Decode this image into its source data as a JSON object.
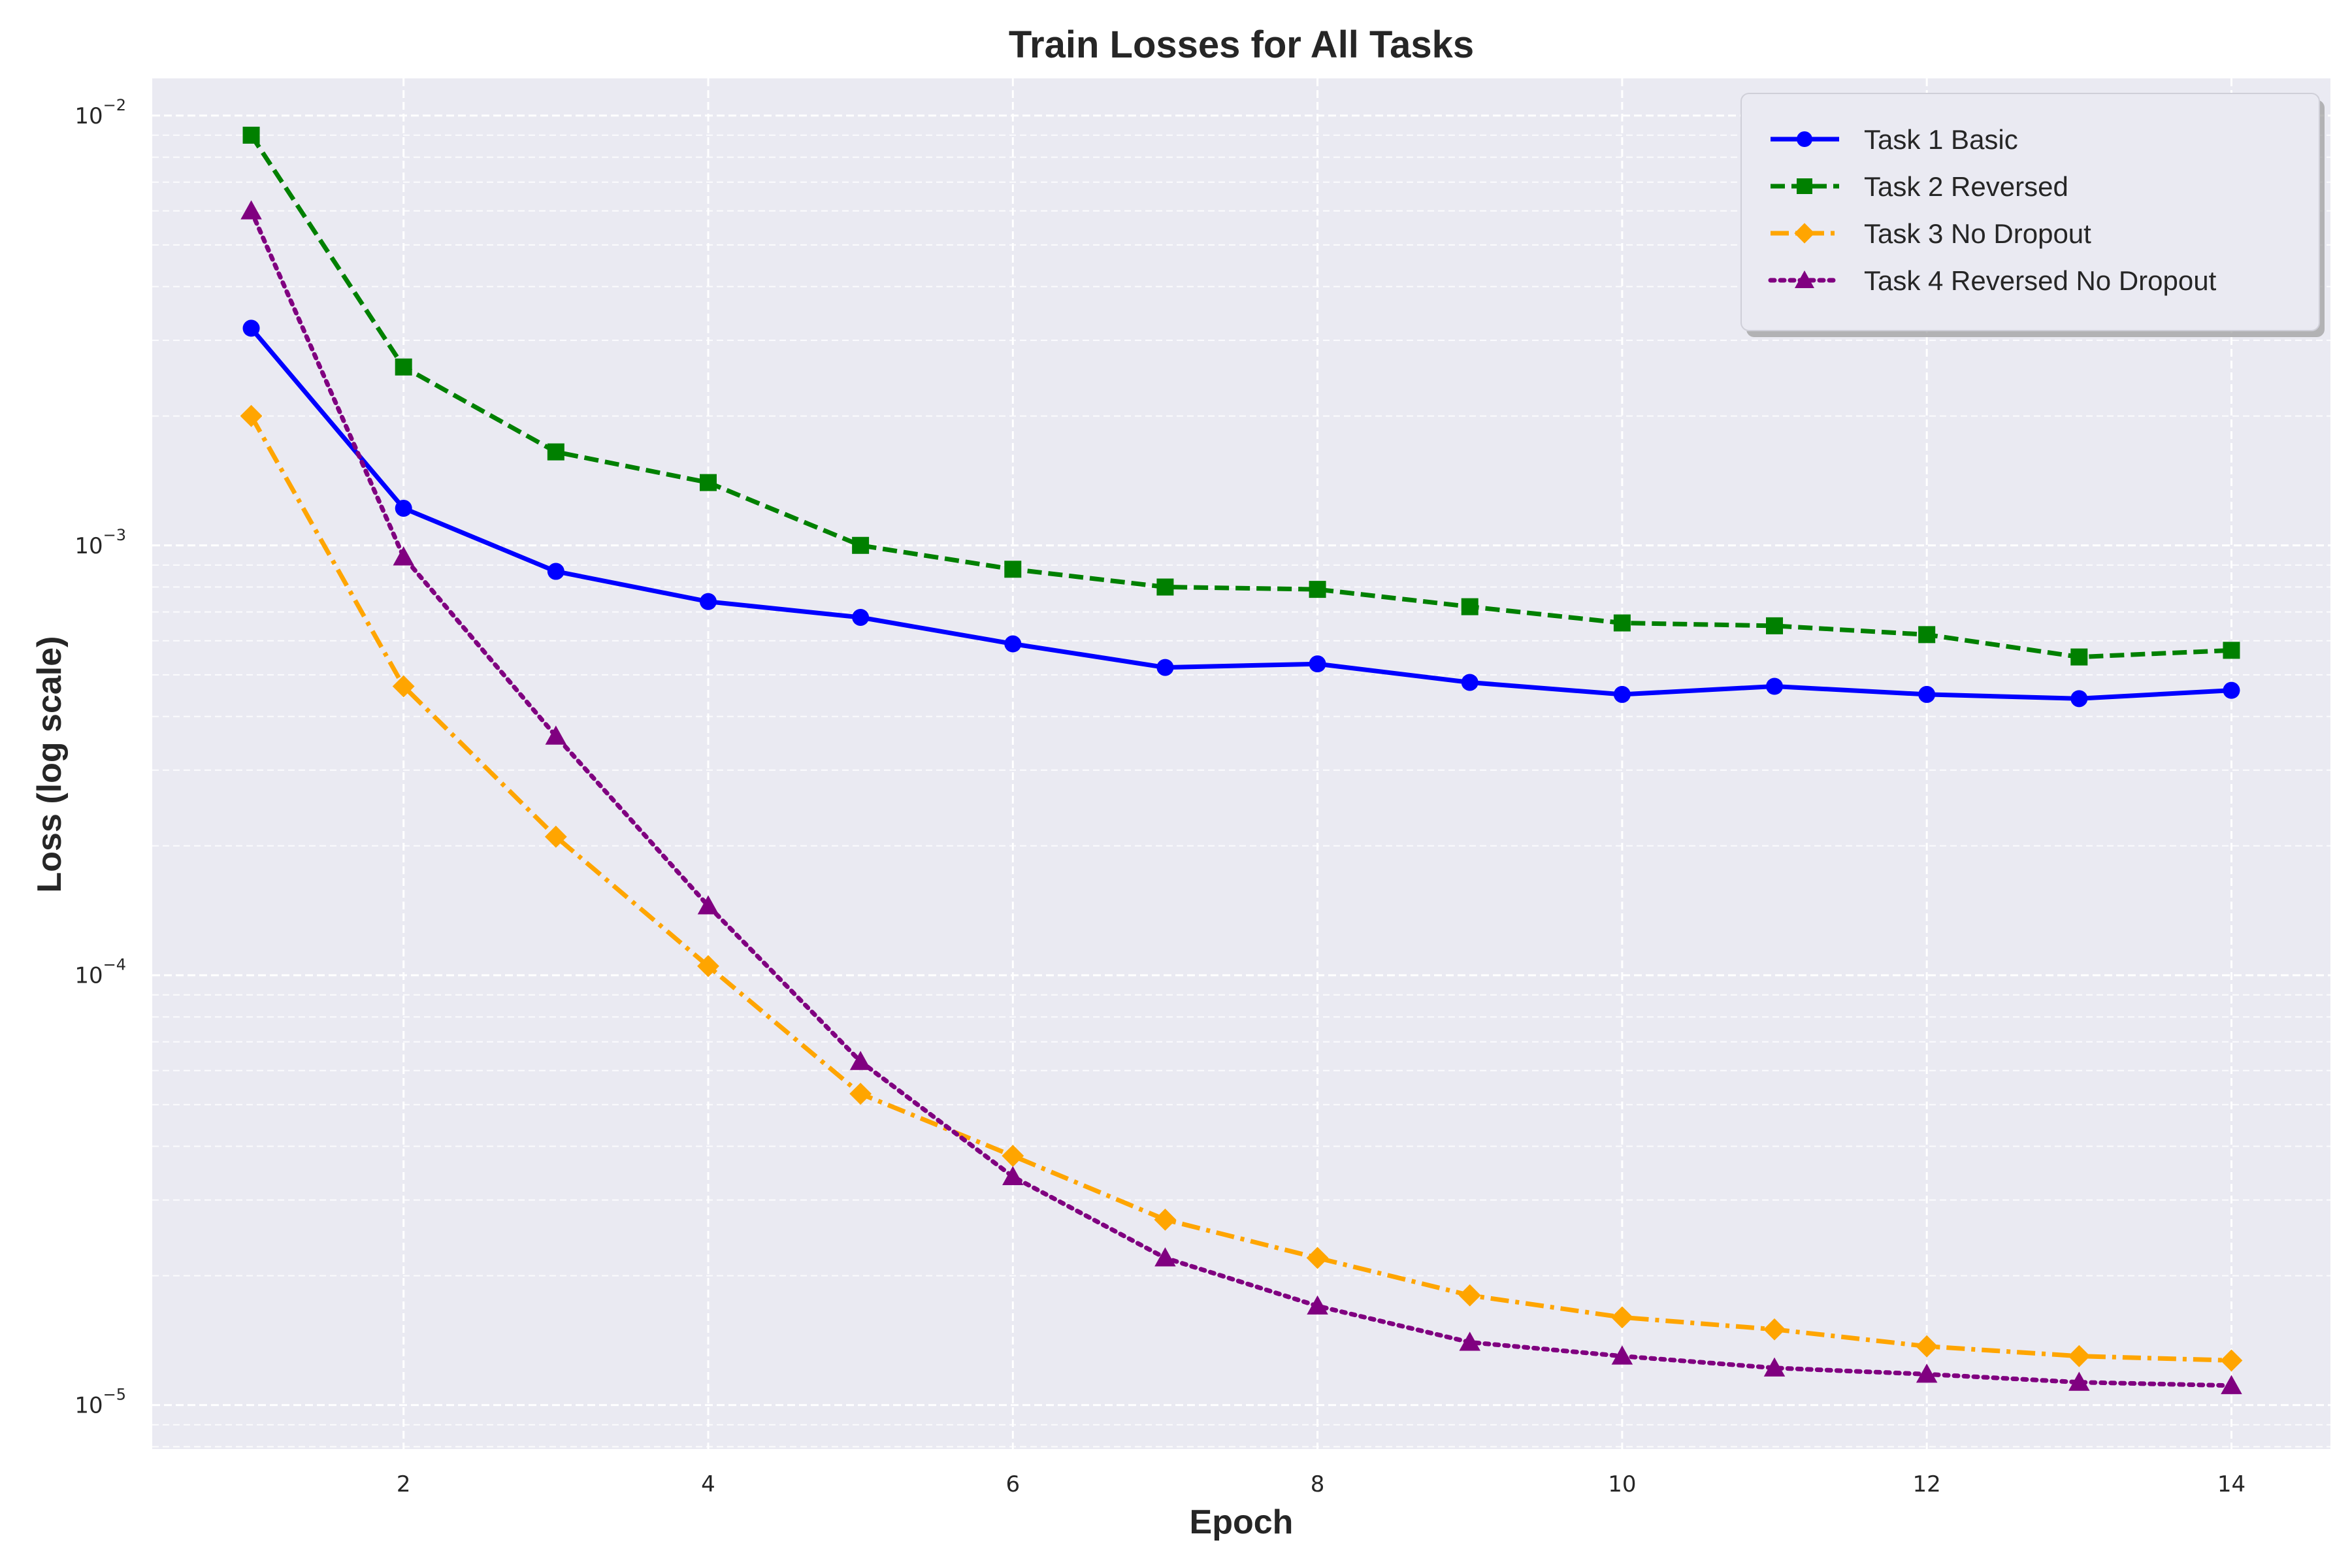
{
  "chart_data": {
    "type": "line",
    "title": "Train Losses for All Tasks",
    "xlabel": "Epoch",
    "ylabel": "Loss (log scale)",
    "yscale": "log",
    "grid": true,
    "legend_position": "top-right",
    "background": "#eaeaf2",
    "xlim": [
      0.35,
      14.65
    ],
    "ylim": [
      7.9e-06,
      0.0122
    ],
    "x_ticks": [
      2,
      4,
      6,
      8,
      10,
      12,
      14
    ],
    "y_ticks": [
      {
        "value": 1e-05,
        "label": "10",
        "exp": "−5"
      },
      {
        "value": 0.0001,
        "label": "10",
        "exp": "−4"
      },
      {
        "value": 0.001,
        "label": "10",
        "exp": "−3"
      },
      {
        "value": 0.01,
        "label": "10",
        "exp": "−2"
      }
    ],
    "x": [
      1,
      2,
      3,
      4,
      5,
      6,
      7,
      8,
      9,
      10,
      11,
      12,
      13,
      14
    ],
    "series": [
      {
        "name": "Task 1 Basic",
        "color": "#0000ff",
        "line_style": "solid",
        "marker": "circle",
        "values": [
          0.0032,
          0.00122,
          0.00087,
          0.00074,
          0.00068,
          0.00059,
          0.00052,
          0.00053,
          0.00048,
          0.00045,
          0.00047,
          0.00045,
          0.00044,
          0.00046
        ]
      },
      {
        "name": "Task 2 Reversed",
        "color": "#008000",
        "line_style": "dashed",
        "marker": "square",
        "values": [
          0.009,
          0.0026,
          0.00165,
          0.0014,
          0.001,
          0.00088,
          0.0008,
          0.00079,
          0.00072,
          0.00066,
          0.00065,
          0.00062,
          0.00055,
          0.00057
        ]
      },
      {
        "name": "Task 3 No Dropout",
        "color": "#ffa500",
        "line_style": "dashdot",
        "marker": "diamond",
        "values": [
          0.002,
          0.00047,
          0.00021,
          0.000105,
          5.3e-05,
          3.8e-05,
          2.7e-05,
          2.2e-05,
          1.8e-05,
          1.6e-05,
          1.5e-05,
          1.37e-05,
          1.3e-05,
          1.27e-05
        ]
      },
      {
        "name": "Task 4 Reversed No Dropout",
        "color": "#800080",
        "line_style": "dotted",
        "marker": "triangle",
        "values": [
          0.006,
          0.00094,
          0.00036,
          0.000145,
          6.3e-05,
          3.4e-05,
          2.2e-05,
          1.7e-05,
          1.4e-05,
          1.3e-05,
          1.22e-05,
          1.18e-05,
          1.13e-05,
          1.11e-05
        ]
      }
    ]
  }
}
